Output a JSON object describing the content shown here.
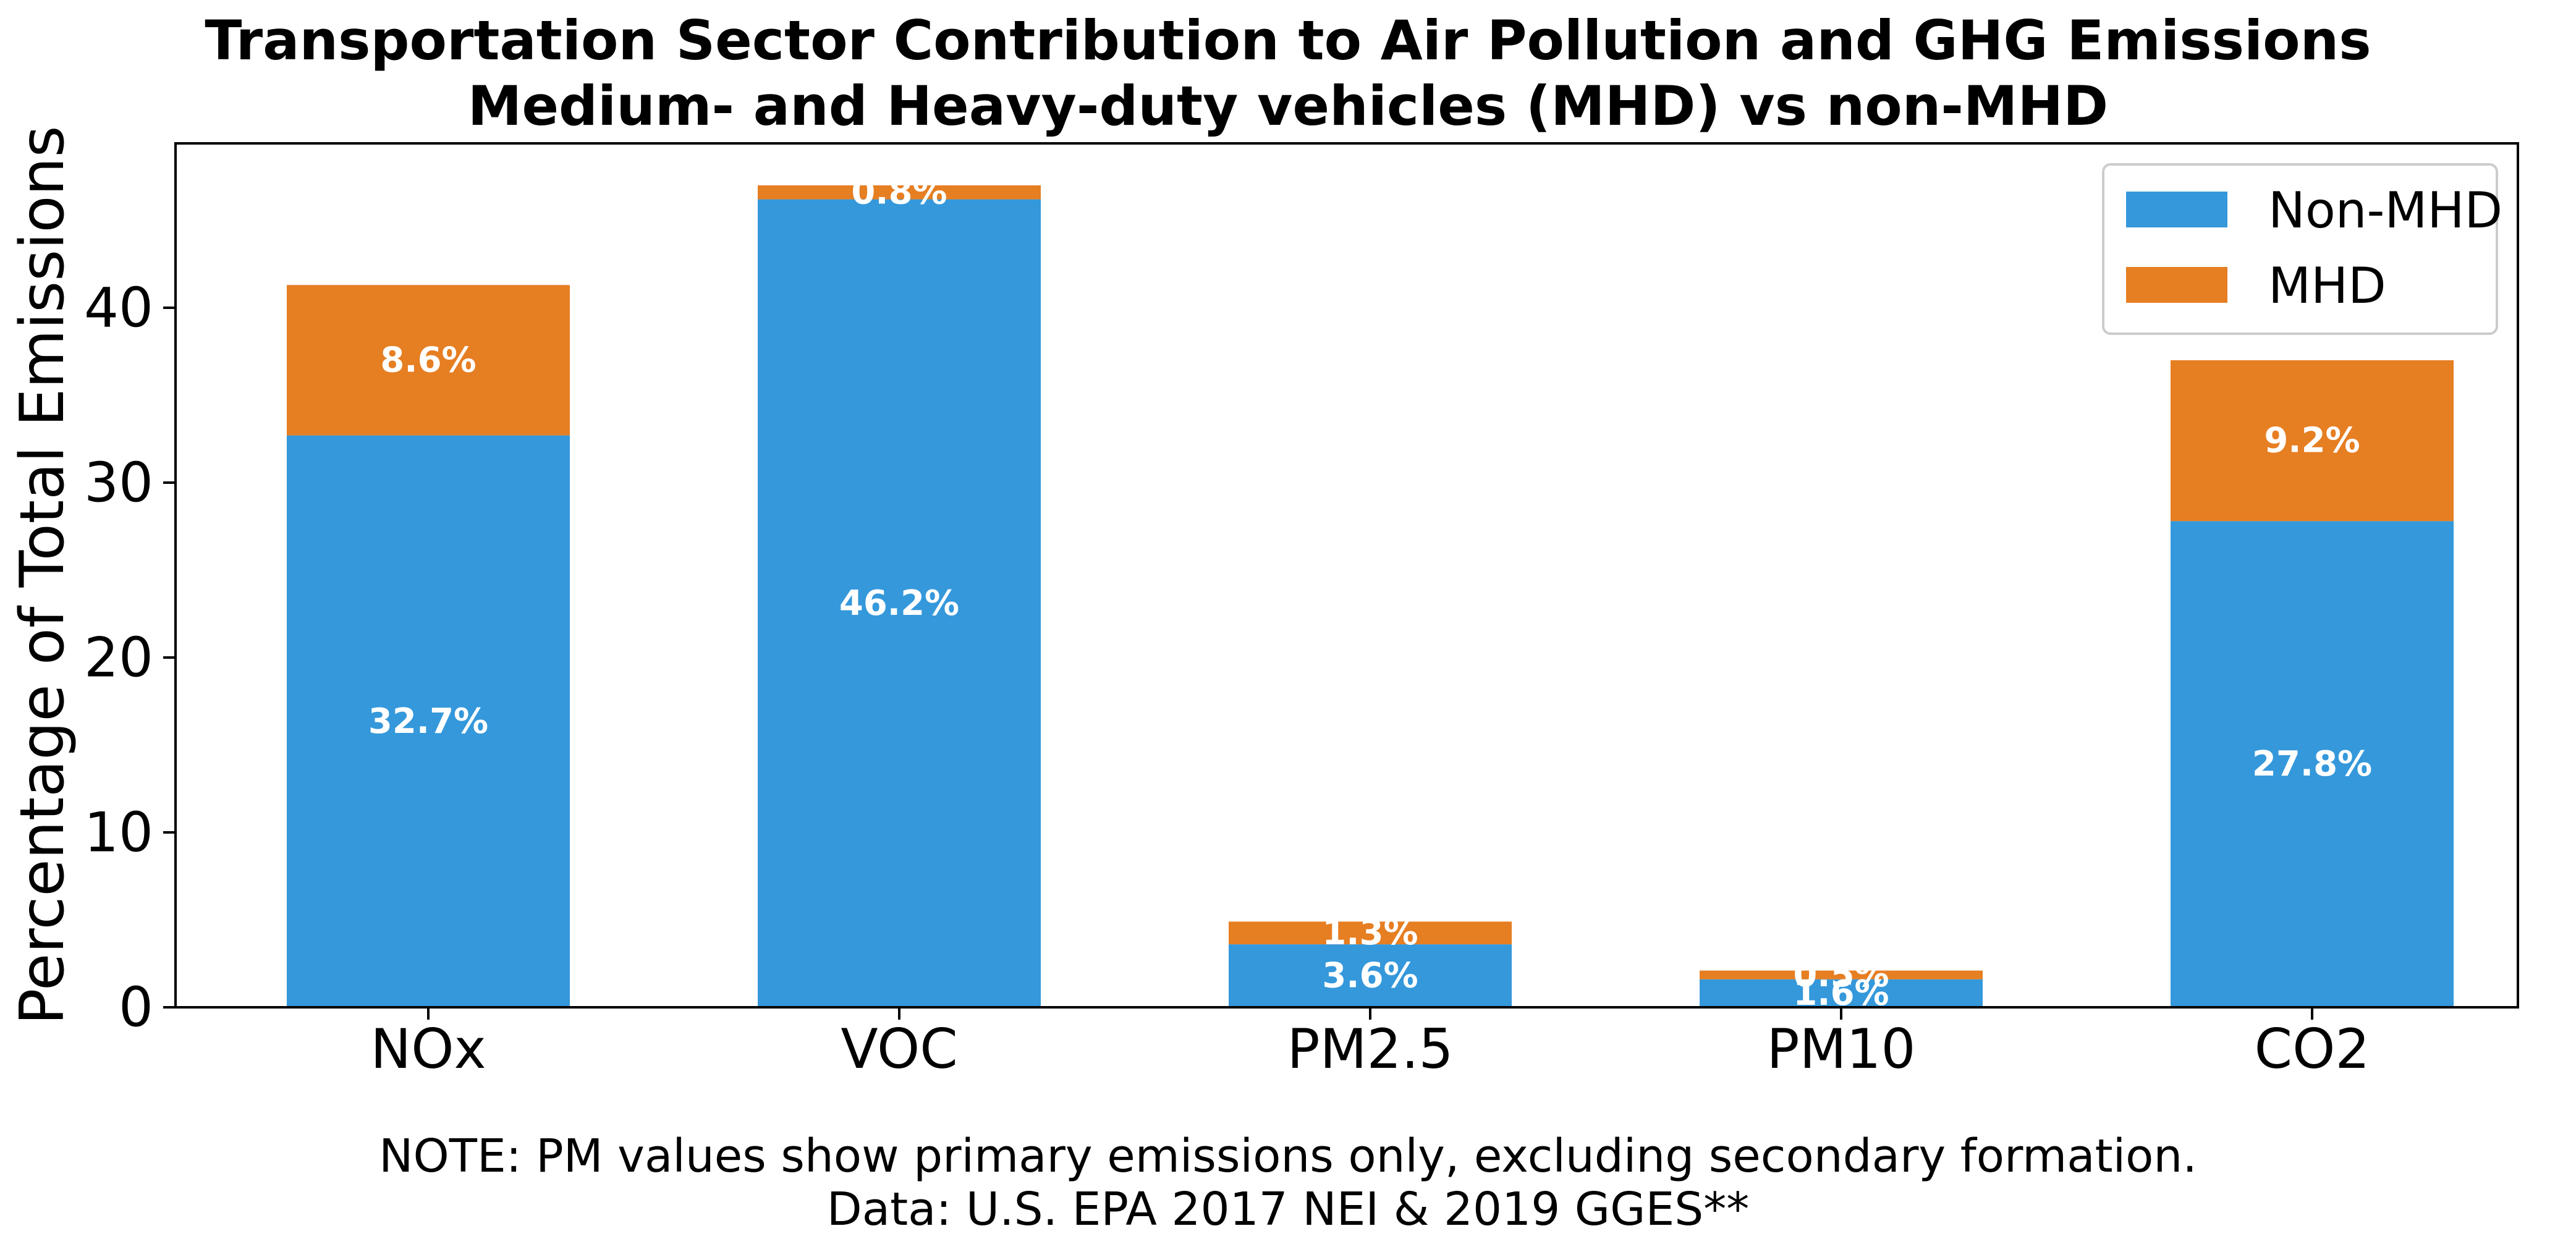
{
  "chart_data": {
    "type": "bar",
    "stacked": true,
    "title": "Transportation Sector Contribution to Air Pollution and GHG Emissions",
    "subtitle": "Medium- and Heavy-duty vehicles (MHD) vs non-MHD",
    "xlabel": "",
    "ylabel": "Percentage of Total Emissions",
    "categories": [
      "NOx",
      "VOC",
      "PM2.5",
      "PM10",
      "CO2"
    ],
    "series": [
      {
        "name": "Non-MHD",
        "color": "#3498db",
        "values": [
          32.7,
          46.2,
          3.6,
          1.6,
          27.8
        ],
        "labels": [
          "32.7%",
          "46.2%",
          "3.6%",
          "1.6%",
          "27.8%"
        ]
      },
      {
        "name": "MHD",
        "color": "#e67e22",
        "values": [
          8.6,
          0.8,
          1.3,
          0.5,
          9.2
        ],
        "labels": [
          "8.6%",
          "0.8%",
          "1.3%",
          "0.5%",
          "9.2%"
        ]
      }
    ],
    "ylim": [
      0,
      49.4
    ],
    "yticks": [
      0,
      10,
      20,
      30,
      40
    ],
    "grid": false,
    "legend_position": "top-right",
    "notes": [
      "NOTE: PM values show primary emissions only, excluding secondary formation.",
      "Data: U.S. EPA 2017 NEI & 2019 GGES**"
    ]
  }
}
